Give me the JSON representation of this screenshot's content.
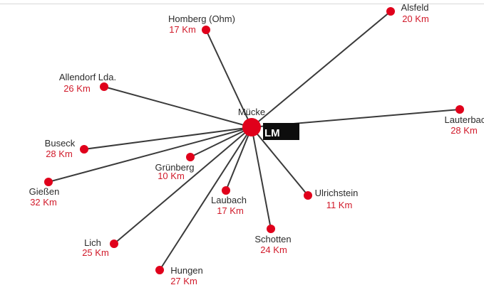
{
  "diagram": {
    "hub": {
      "name": "Mücke"
    },
    "logo": {
      "mark": "LM",
      "sub_top": "",
      "sub_bottom": ""
    },
    "places": [
      {
        "name": "Homberg (Ohm)",
        "distance": "17 Km"
      },
      {
        "name": "Alsfeld",
        "distance": "20 Km"
      },
      {
        "name": "Allendorf Lda.",
        "distance": "26 Km"
      },
      {
        "name": "Lauterbach",
        "distance": "28 Km"
      },
      {
        "name": "Buseck",
        "distance": "28 Km"
      },
      {
        "name": "Grünberg",
        "distance": "10 Km"
      },
      {
        "name": "Gießen",
        "distance": "32 Km"
      },
      {
        "name": "Laubach",
        "distance": "17 Km"
      },
      {
        "name": "Ulrichstein",
        "distance": "11 Km"
      },
      {
        "name": "Schotten",
        "distance": "24 Km"
      },
      {
        "name": "Lich",
        "distance": "25 Km"
      },
      {
        "name": "Hungen",
        "distance": "27 Km"
      }
    ],
    "colors": {
      "node": "#e0001b",
      "edge": "#3a3a3a",
      "distance_text": "#d11a2a",
      "name_text": "#2b2b2b",
      "logo_background": "#0d0d0d"
    }
  }
}
